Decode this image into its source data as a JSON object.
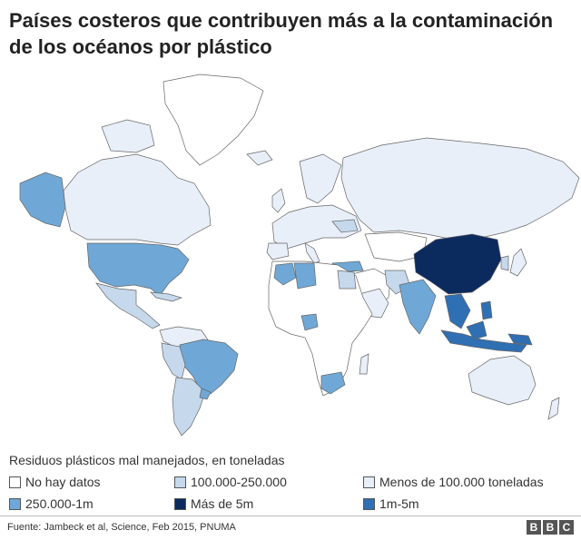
{
  "title": "Países costeros que contribuyen más a la contaminación de los océanos por plástico",
  "legend": {
    "title": "Residuos plásticos mal manejados, en toneladas",
    "items": [
      {
        "label": "No hay datos",
        "color": "#ffffff"
      },
      {
        "label": "100.000-250.000",
        "color": "#c6d8ec"
      },
      {
        "label": "Menos de 100.000 toneladas",
        "color": "#e8eff8"
      },
      {
        "label": "250.000-1m",
        "color": "#6fa8d6"
      },
      {
        "label": "Más de 5m",
        "color": "#0b2a5e"
      },
      {
        "label": "1m-5m",
        "color": "#2f6fb3"
      }
    ]
  },
  "source": "Fuente: Jambeck et al, Science, Feb 2015, PNUMA",
  "logo": [
    "B",
    "B",
    "C"
  ]
}
